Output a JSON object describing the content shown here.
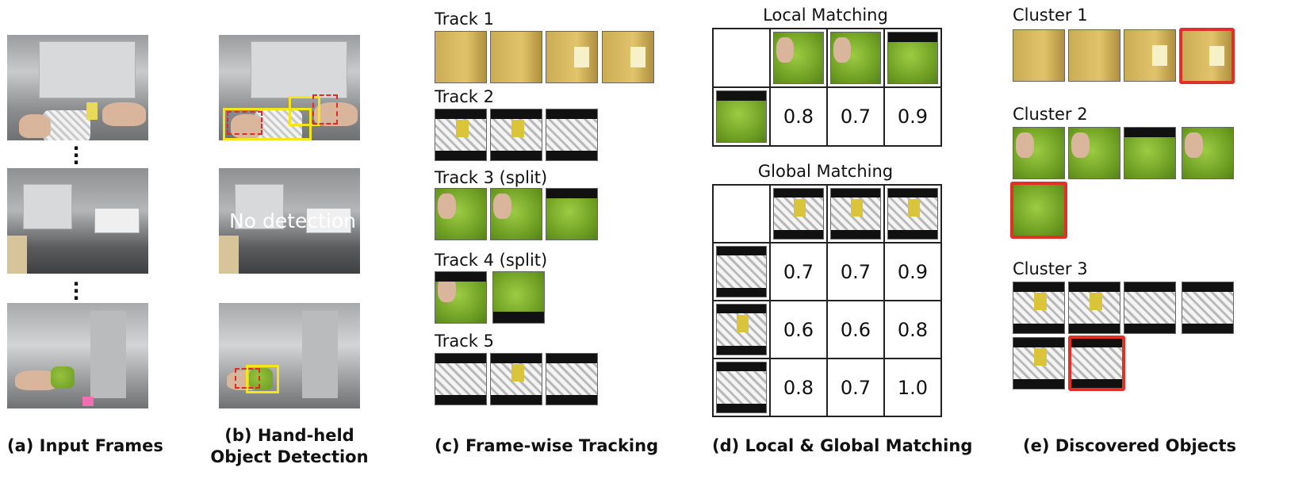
{
  "captions": {
    "a": "(a) Input Frames",
    "b": "(b) Hand-held Object Detection",
    "c": "(c) Frame-wise Tracking",
    "d": "(d) Local & Global Matching",
    "e": "(e) Discovered Objects"
  },
  "detection": {
    "no_detection": "No detection"
  },
  "tracks": [
    {
      "label": "Track 1"
    },
    {
      "label": "Track 2"
    },
    {
      "label": "Track 3 (split)"
    },
    {
      "label": "Track 4 (split)"
    },
    {
      "label": "Track 5"
    }
  ],
  "local_matching": {
    "title": "Local Matching",
    "scores": [
      [
        "0.8",
        "0.7",
        "0.9"
      ]
    ]
  },
  "global_matching": {
    "title": "Global Matching",
    "scores": [
      [
        "0.7",
        "0.7",
        "0.9"
      ],
      [
        "0.6",
        "0.6",
        "0.8"
      ],
      [
        "0.8",
        "0.7",
        "1.0"
      ]
    ]
  },
  "clusters": [
    {
      "label": "Cluster 1"
    },
    {
      "label": "Cluster 2"
    },
    {
      "label": "Cluster 3"
    }
  ],
  "colors": {
    "detection_box": "#f3e61b",
    "hand_box": "#e02a2a",
    "highlight": "#e0302a"
  }
}
